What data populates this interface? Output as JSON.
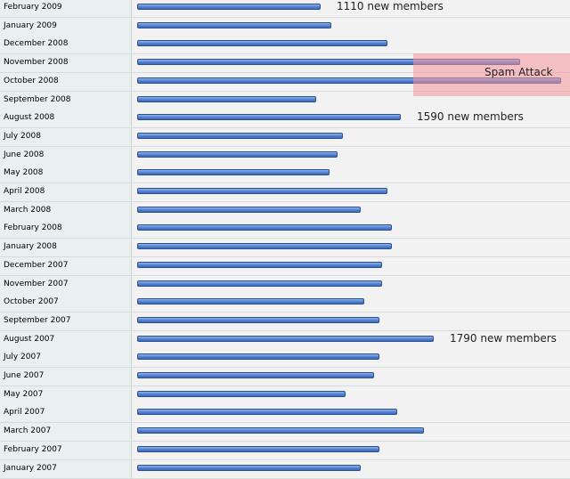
{
  "chart_data": {
    "type": "bar",
    "orientation": "horizontal",
    "categories": [
      "February 2009",
      "January 2009",
      "December 2008",
      "November 2008",
      "October 2008",
      "September 2008",
      "August 2008",
      "July 2008",
      "June 2008",
      "May 2008",
      "April 2008",
      "March 2008",
      "February 2008",
      "January 2008",
      "December 2007",
      "November 2007",
      "October 2007",
      "September 2007",
      "August 2007",
      "July 2007",
      "June 2007",
      "May 2007",
      "April 2007",
      "March 2007",
      "February 2007",
      "January 2007"
    ],
    "values": [
      1110,
      1170,
      1510,
      2310,
      2560,
      1080,
      1590,
      1240,
      1210,
      1160,
      1510,
      1350,
      1540,
      1540,
      1480,
      1480,
      1370,
      1460,
      1790,
      1460,
      1430,
      1260,
      1570,
      1730,
      1460,
      1350
    ],
    "annotations": [
      {
        "category": "February 2009",
        "text": "1110 new members"
      },
      {
        "category": "August 2008",
        "text": "1590 new members"
      },
      {
        "category": "August 2007",
        "text": "1790 new members"
      },
      {
        "category": "October 2008",
        "text": "Spam Attack",
        "highlight": true
      }
    ],
    "bar_color": "#5482d1",
    "highlight_color": "#f5969b",
    "grid": false
  }
}
